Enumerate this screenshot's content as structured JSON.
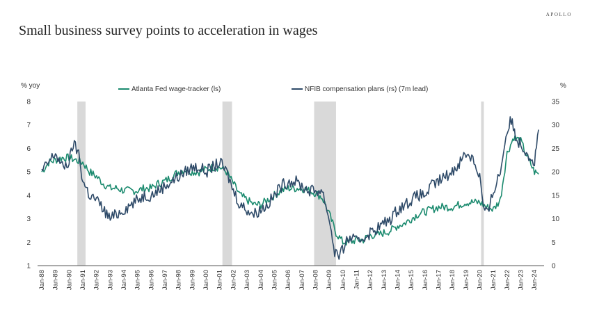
{
  "header": {
    "brand": "APOLLO",
    "title": "Small business survey points to acceleration in wages"
  },
  "chart_data": {
    "type": "line",
    "title": "Small business survey points to acceleration in wages",
    "ylabel_left": "% yoy",
    "ylabel_right": "%",
    "ylim_left": [
      1,
      8
    ],
    "ylim_right": [
      0,
      35
    ],
    "yticks_left": [
      "1",
      "2",
      "3",
      "4",
      "5",
      "6",
      "7",
      "8"
    ],
    "yticks_right": [
      "0",
      "5",
      "10",
      "15",
      "20",
      "25",
      "30",
      "35"
    ],
    "xlim": [
      1988.0,
      2024.6
    ],
    "xticks": [
      "Jan-88",
      "Jan-89",
      "Jan-90",
      "Jan-91",
      "Jan-92",
      "Jan-93",
      "Jan-94",
      "Jan-95",
      "Jan-96",
      "Jan-97",
      "Jan-98",
      "Jan-99",
      "Jan-00",
      "Jan-01",
      "Jan-02",
      "Jan-03",
      "Jan-04",
      "Jan-05",
      "Jan-06",
      "Jan-07",
      "Jan-08",
      "Jan-09",
      "Jan-10",
      "Jan-11",
      "Jan-12",
      "Jan-13",
      "Jan-14",
      "Jan-15",
      "Jan-16",
      "Jan-17",
      "Jan-18",
      "Jan-19",
      "Jan-20",
      "Jan-21",
      "Jan-22",
      "Jan-23",
      "Jan-24"
    ],
    "recessions": [
      [
        1990.6,
        1991.2
      ],
      [
        2001.2,
        2001.9
      ],
      [
        2007.9,
        2009.5
      ],
      [
        2020.1,
        2020.3
      ]
    ],
    "legend_position": "top-center",
    "grid": false,
    "series": [
      {
        "name": "Atlanta Fed wage-tracker (ls)",
        "axis": "left",
        "color": "#1a8a6e",
        "x": [
          1988.0,
          1988.5,
          1989.0,
          1989.5,
          1990.0,
          1990.5,
          1991.0,
          1991.5,
          1992.0,
          1992.5,
          1993.0,
          1993.5,
          1994.0,
          1994.5,
          1995.0,
          1995.5,
          1996.0,
          1996.5,
          1997.0,
          1997.5,
          1998.0,
          1998.5,
          1999.0,
          1999.5,
          2000.0,
          2000.5,
          2001.0,
          2001.5,
          2002.0,
          2002.5,
          2003.0,
          2003.5,
          2004.0,
          2004.5,
          2005.0,
          2005.5,
          2006.0,
          2006.5,
          2007.0,
          2007.5,
          2008.0,
          2008.5,
          2009.0,
          2009.5,
          2010.0,
          2010.5,
          2011.0,
          2011.5,
          2012.0,
          2012.5,
          2013.0,
          2013.5,
          2014.0,
          2014.5,
          2015.0,
          2015.5,
          2016.0,
          2016.5,
          2017.0,
          2017.5,
          2018.0,
          2018.5,
          2019.0,
          2019.5,
          2020.0,
          2020.5,
          2021.0,
          2021.5,
          2022.0,
          2022.5,
          2023.0,
          2023.5,
          2024.0,
          2024.3
        ],
        "values": [
          5.0,
          5.4,
          5.5,
          5.6,
          5.6,
          5.5,
          5.4,
          5.0,
          4.8,
          4.5,
          4.3,
          4.3,
          4.2,
          4.2,
          4.2,
          4.3,
          4.3,
          4.5,
          4.6,
          4.8,
          5.0,
          5.1,
          5.0,
          5.0,
          5.1,
          5.2,
          5.2,
          5.0,
          4.5,
          4.0,
          3.8,
          3.6,
          3.6,
          3.8,
          4.0,
          4.2,
          4.3,
          4.3,
          4.3,
          4.2,
          4.1,
          3.9,
          3.2,
          2.4,
          2.0,
          2.0,
          2.1,
          2.1,
          2.3,
          2.3,
          2.4,
          2.5,
          2.7,
          2.8,
          3.0,
          3.2,
          3.3,
          3.4,
          3.5,
          3.5,
          3.5,
          3.6,
          3.7,
          3.7,
          3.7,
          3.5,
          3.4,
          3.8,
          5.8,
          6.5,
          6.3,
          5.6,
          5.0,
          4.9
        ]
      },
      {
        "name": "NFIB compensation plans (rs) (7m lead)",
        "axis": "right",
        "color": "#2e4a68",
        "x": [
          1988.0,
          1988.5,
          1989.0,
          1989.5,
          1990.0,
          1990.3,
          1990.7,
          1991.0,
          1991.5,
          1992.0,
          1992.5,
          1993.0,
          1993.5,
          1994.0,
          1994.5,
          1995.0,
          1995.5,
          1996.0,
          1996.5,
          1997.0,
          1997.5,
          1998.0,
          1998.5,
          1999.0,
          1999.5,
          2000.0,
          2000.5,
          2001.0,
          2001.5,
          2002.0,
          2002.5,
          2003.0,
          2003.5,
          2004.0,
          2004.5,
          2005.0,
          2005.5,
          2006.0,
          2006.5,
          2007.0,
          2007.5,
          2008.0,
          2008.5,
          2009.0,
          2009.4,
          2009.8,
          2010.2,
          2010.6,
          2011.0,
          2011.5,
          2012.0,
          2012.5,
          2013.0,
          2013.5,
          2014.0,
          2014.5,
          2015.0,
          2015.5,
          2016.0,
          2016.5,
          2017.0,
          2017.5,
          2018.0,
          2018.5,
          2019.0,
          2019.5,
          2020.0,
          2020.3,
          2020.6,
          2021.0,
          2021.5,
          2022.0,
          2022.3,
          2022.7,
          2023.0,
          2023.5,
          2024.0,
          2024.3
        ],
        "values": [
          20,
          22,
          24,
          21,
          22,
          26,
          24,
          18,
          15,
          14,
          12,
          10,
          11,
          12,
          13,
          14,
          15,
          15,
          16,
          17,
          18,
          19,
          20,
          21,
          21,
          20,
          21,
          22,
          20,
          16,
          13,
          12,
          11,
          12,
          13,
          15,
          17,
          18,
          18,
          17,
          16,
          16,
          16,
          10,
          3,
          2,
          5,
          6,
          5,
          6,
          7,
          8,
          9,
          10,
          12,
          13,
          14,
          15,
          15,
          17,
          18,
          19,
          20,
          22,
          24,
          23,
          19,
          12,
          11,
          16,
          20,
          29,
          31,
          27,
          26,
          24,
          22,
          29
        ]
      }
    ]
  }
}
